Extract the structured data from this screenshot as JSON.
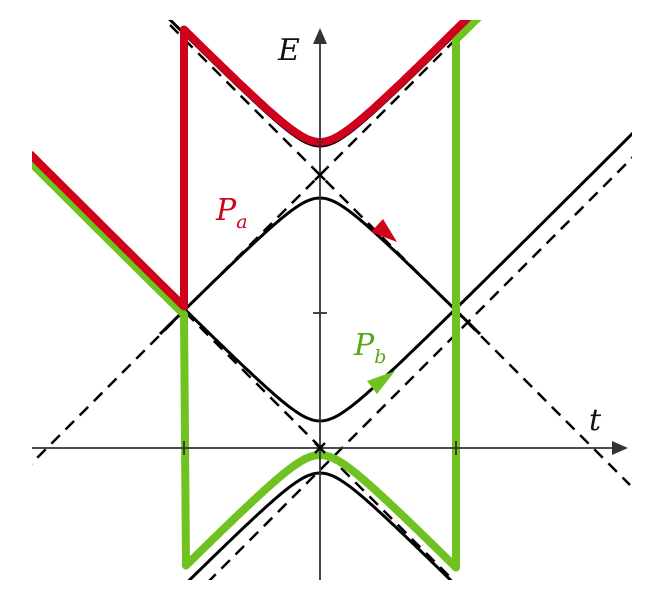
{
  "axes": {
    "x_label": "t",
    "y_label": "E"
  },
  "paths": [
    {
      "id": "a",
      "label_main": "P",
      "label_sub": "a",
      "color": "#d0021b"
    },
    {
      "id": "b",
      "label_main": "P",
      "label_sub": "b",
      "color": "#6fc21f"
    }
  ],
  "colors": {
    "curves": "#000000",
    "asymptotes": "#000000",
    "axes": "#333333"
  }
}
